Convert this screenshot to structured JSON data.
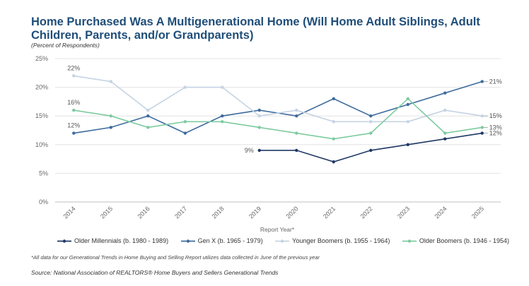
{
  "title": "Home Purchased Was A Multigenerational Home (Will Home Adult Siblings, Adult Children, Parents, and/or Grandparents)",
  "subtitle": "(Percent of Respondents)",
  "footnote": "*All data for our Generational Trends in Home Buying and Selling Report utilizes data collected in June of the previous year",
  "source": "Source: National Association of REALTORS® Home Buyers and Sellers Generational Trends",
  "chart_data": {
    "type": "line",
    "xlabel": "Report Year*",
    "ylabel": "",
    "x": [
      "2014",
      "2015",
      "2016",
      "2017",
      "2018",
      "2019",
      "2020",
      "2021",
      "2022",
      "2023",
      "2024",
      "2025"
    ],
    "ylim": [
      0,
      25
    ],
    "yticks": [
      0,
      5,
      10,
      15,
      20,
      25
    ],
    "ytick_labels": [
      "0%",
      "5%",
      "10%",
      "15%",
      "20%",
      "25%"
    ],
    "grid": "horizontal",
    "legend_position": "bottom",
    "series": [
      {
        "name": "Older Millennials (b. 1980 - 1989)",
        "color": "#1f3864",
        "values": [
          null,
          null,
          null,
          null,
          null,
          9,
          9,
          7,
          9,
          10,
          11,
          12
        ],
        "labels": [
          {
            "index": 5,
            "text": "9%",
            "side": "left"
          },
          {
            "index": 11,
            "text": "12%",
            "side": "right"
          }
        ]
      },
      {
        "name": "Gen X (b. 1965 - 1979)",
        "color": "#3d6b9e",
        "values": [
          12,
          13,
          15,
          12,
          15,
          16,
          15,
          18,
          15,
          17,
          19,
          21
        ],
        "labels": [
          {
            "index": 0,
            "text": "12%",
            "side": "above"
          },
          {
            "index": 11,
            "text": "21%",
            "side": "right"
          }
        ]
      },
      {
        "name": "Younger Boomers (b. 1955 - 1964)",
        "color": "#c5d3e3",
        "values": [
          22,
          21,
          16,
          20,
          20,
          15,
          16,
          14,
          14,
          14,
          16,
          15
        ],
        "labels": [
          {
            "index": 0,
            "text": "22%",
            "side": "above"
          },
          {
            "index": 11,
            "text": "15%",
            "side": "right"
          }
        ]
      },
      {
        "name": "Older Boomers (b. 1946 - 1954)",
        "color": "#7dcba0",
        "values": [
          16,
          15,
          13,
          14,
          14,
          13,
          12,
          11,
          12,
          18,
          12,
          13
        ],
        "labels": [
          {
            "index": 0,
            "text": "16%",
            "side": "above"
          },
          {
            "index": 11,
            "text": "13%",
            "side": "right"
          }
        ]
      }
    ]
  }
}
